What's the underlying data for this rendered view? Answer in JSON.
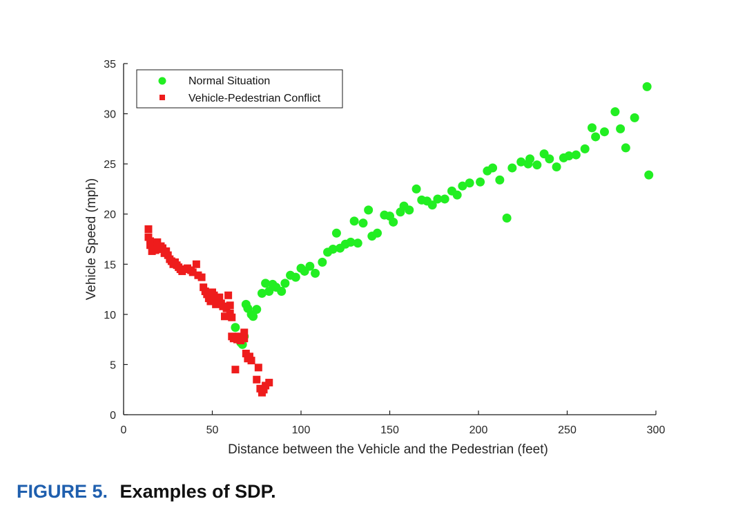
{
  "caption": {
    "label": "FIGURE 5.",
    "text": "Examples of SDP."
  },
  "colors": {
    "normal": "#22ee22",
    "conflict": "#ee1c1c",
    "caption_label": "#1f5fae"
  },
  "chart_data": {
    "type": "scatter",
    "xlabel": "Distance between the Vehicle and the Pedestrian (feet)",
    "ylabel": "Vehicle Speed (mph)",
    "xlim": [
      0,
      300
    ],
    "ylim": [
      0,
      35
    ],
    "xticks": [
      0,
      50,
      100,
      150,
      200,
      250,
      300
    ],
    "yticks": [
      0,
      5,
      10,
      15,
      20,
      25,
      30,
      35
    ],
    "grid": false,
    "legend_position": "top-left",
    "series": [
      {
        "name": "Normal Situation",
        "marker": "circle",
        "color": "#22ee22",
        "points": [
          [
            63,
            8.7
          ],
          [
            65,
            7.5
          ],
          [
            66,
            7.2
          ],
          [
            67,
            7.0
          ],
          [
            68,
            7.8
          ],
          [
            69,
            11.0
          ],
          [
            70,
            10.6
          ],
          [
            72,
            10.0
          ],
          [
            73,
            9.8
          ],
          [
            75,
            10.5
          ],
          [
            78,
            12.1
          ],
          [
            80,
            13.1
          ],
          [
            82,
            12.3
          ],
          [
            84,
            13.0
          ],
          [
            86,
            12.7
          ],
          [
            89,
            12.3
          ],
          [
            91,
            13.1
          ],
          [
            94,
            13.9
          ],
          [
            97,
            13.7
          ],
          [
            100,
            14.6
          ],
          [
            102,
            14.3
          ],
          [
            105,
            14.8
          ],
          [
            108,
            14.1
          ],
          [
            112,
            15.2
          ],
          [
            115,
            16.2
          ],
          [
            118,
            16.5
          ],
          [
            120,
            18.1
          ],
          [
            122,
            16.6
          ],
          [
            125,
            17.0
          ],
          [
            128,
            17.2
          ],
          [
            130,
            19.3
          ],
          [
            132,
            17.1
          ],
          [
            135,
            19.1
          ],
          [
            138,
            20.4
          ],
          [
            140,
            17.8
          ],
          [
            143,
            18.1
          ],
          [
            147,
            19.9
          ],
          [
            150,
            19.8
          ],
          [
            152,
            19.2
          ],
          [
            156,
            20.2
          ],
          [
            158,
            20.8
          ],
          [
            161,
            20.4
          ],
          [
            165,
            22.5
          ],
          [
            168,
            21.4
          ],
          [
            171,
            21.3
          ],
          [
            174,
            20.9
          ],
          [
            177,
            21.5
          ],
          [
            181,
            21.5
          ],
          [
            185,
            22.3
          ],
          [
            188,
            21.9
          ],
          [
            191,
            22.8
          ],
          [
            195,
            23.1
          ],
          [
            201,
            23.2
          ],
          [
            205,
            24.3
          ],
          [
            208,
            24.6
          ],
          [
            212,
            23.4
          ],
          [
            216,
            19.6
          ],
          [
            219,
            24.6
          ],
          [
            224,
            25.2
          ],
          [
            228,
            25.0
          ],
          [
            229,
            25.5
          ],
          [
            233,
            24.9
          ],
          [
            237,
            26.0
          ],
          [
            240,
            25.5
          ],
          [
            244,
            24.7
          ],
          [
            248,
            25.6
          ],
          [
            251,
            25.8
          ],
          [
            255,
            25.9
          ],
          [
            260,
            26.5
          ],
          [
            264,
            28.6
          ],
          [
            266,
            27.7
          ],
          [
            271,
            28.2
          ],
          [
            277,
            30.2
          ],
          [
            280,
            28.5
          ],
          [
            283,
            26.6
          ],
          [
            288,
            29.6
          ],
          [
            295,
            32.7
          ],
          [
            296,
            23.9
          ]
        ]
      },
      {
        "name": "Vehicle-Pedestrian Conflict",
        "marker": "square",
        "color": "#ee1c1c",
        "points": [
          [
            14,
            18.5
          ],
          [
            14,
            17.7
          ],
          [
            15,
            17.3
          ],
          [
            15,
            16.9
          ],
          [
            16,
            16.3
          ],
          [
            17,
            16.8
          ],
          [
            18,
            16.4
          ],
          [
            19,
            17.2
          ],
          [
            20,
            16.5
          ],
          [
            21,
            16.8
          ],
          [
            22,
            16.6
          ],
          [
            23,
            16.1
          ],
          [
            24,
            16.3
          ],
          [
            25,
            15.9
          ],
          [
            26,
            15.5
          ],
          [
            27,
            15.3
          ],
          [
            28,
            15.0
          ],
          [
            29,
            15.2
          ],
          [
            30,
            14.9
          ],
          [
            31,
            14.7
          ],
          [
            32,
            14.5
          ],
          [
            33,
            14.3
          ],
          [
            35,
            14.5
          ],
          [
            36,
            14.6
          ],
          [
            38,
            14.4
          ],
          [
            39,
            14.2
          ],
          [
            41,
            15.0
          ],
          [
            42,
            13.9
          ],
          [
            44,
            13.7
          ],
          [
            45,
            12.7
          ],
          [
            46,
            12.3
          ],
          [
            47,
            12.0
          ],
          [
            48,
            11.6
          ],
          [
            49,
            11.3
          ],
          [
            50,
            12.2
          ],
          [
            51,
            11.9
          ],
          [
            52,
            11.0
          ],
          [
            53,
            11.4
          ],
          [
            54,
            11.7
          ],
          [
            55,
            11.1
          ],
          [
            56,
            10.8
          ],
          [
            57,
            9.8
          ],
          [
            58,
            10.6
          ],
          [
            59,
            11.9
          ],
          [
            60,
            10.9
          ],
          [
            60,
            10.1
          ],
          [
            61,
            9.7
          ],
          [
            61,
            7.8
          ],
          [
            62,
            7.6
          ],
          [
            63,
            4.5
          ],
          [
            64,
            7.5
          ],
          [
            65,
            7.8
          ],
          [
            66,
            7.4
          ],
          [
            67,
            7.7
          ],
          [
            68,
            8.2
          ],
          [
            68,
            7.6
          ],
          [
            69,
            6.1
          ],
          [
            70,
            5.6
          ],
          [
            71,
            5.8
          ],
          [
            72,
            5.4
          ],
          [
            75,
            3.5
          ],
          [
            76,
            4.7
          ],
          [
            77,
            2.6
          ],
          [
            78,
            2.2
          ],
          [
            79,
            2.5
          ],
          [
            80,
            2.9
          ],
          [
            82,
            3.2
          ]
        ]
      }
    ]
  }
}
